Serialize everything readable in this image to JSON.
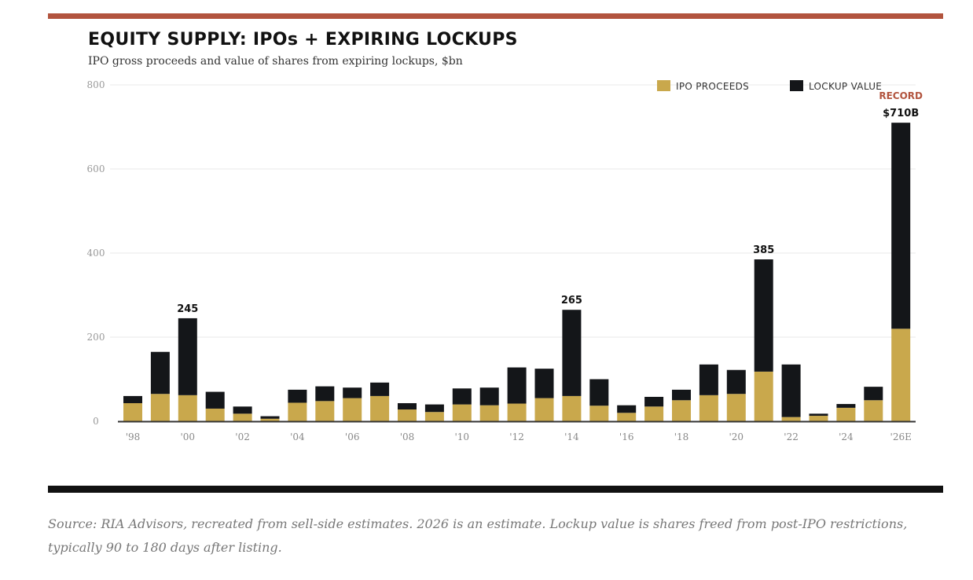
{
  "title": "EQUITY SUPPLY: IPOs + EXPIRING LOCKUPS",
  "subtitle": "IPO gross proceeds and value of shares from expiring lockups, $bn",
  "source": "Source: RIA Advisors, recreated from sell-side estimates. 2026 is an estimate. Lockup value is shares freed from post-IPO restrictions, typically 90 to 180 days after listing.",
  "colors": {
    "ipo": "#c9a84c",
    "lockup": "#141619",
    "accent": "#b2543e",
    "grid": "#e8e8e8"
  },
  "chart_data": {
    "type": "bar",
    "stacked": true,
    "categories": [
      "'98",
      "'99",
      "'00",
      "'01",
      "'02",
      "'03",
      "'04",
      "'05",
      "'06",
      "'07",
      "'08",
      "'09",
      "'10",
      "'11",
      "'12",
      "'13",
      "'14",
      "'15",
      "'16",
      "'17",
      "'18",
      "'19",
      "'20",
      "'21",
      "'22",
      "'23",
      "'24",
      "'25",
      "'26E"
    ],
    "tick_labels": [
      "'98",
      "",
      "'00",
      "",
      "'02",
      "",
      "'04",
      "",
      "'06",
      "",
      "'08",
      "",
      "'10",
      "",
      "'12",
      "",
      "'14",
      "",
      "'16",
      "",
      "'18",
      "",
      "'20",
      "",
      "'22",
      "",
      "'24",
      "",
      "'26E"
    ],
    "series": [
      {
        "name": "IPO PROCEEDS",
        "values": [
          43,
          65,
          62,
          30,
          18,
          6,
          44,
          48,
          55,
          60,
          28,
          22,
          40,
          38,
          42,
          55,
          60,
          37,
          20,
          35,
          50,
          62,
          65,
          118,
          10,
          13,
          32,
          50,
          220
        ]
      },
      {
        "name": "LOCKUP VALUE",
        "values": [
          17,
          100,
          183,
          40,
          17,
          6,
          31,
          35,
          25,
          32,
          15,
          18,
          38,
          42,
          86,
          70,
          205,
          63,
          18,
          23,
          25,
          73,
          57,
          267,
          125,
          5,
          9,
          32,
          490
        ]
      }
    ],
    "ylim": [
      0,
      800
    ],
    "yticks": [
      0,
      200,
      400,
      600,
      800
    ],
    "legend": "top-right",
    "grid": true,
    "annotations": [
      {
        "category": "'00",
        "text": "245"
      },
      {
        "category": "'14",
        "text": "265"
      },
      {
        "category": "'21",
        "text": "385"
      },
      {
        "category": "'26E",
        "text": "$710B",
        "label": "RECORD"
      }
    ]
  }
}
